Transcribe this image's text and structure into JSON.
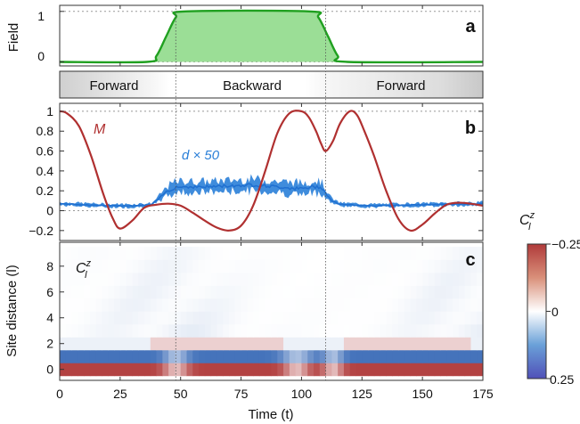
{
  "chart_data": [
    {
      "panel": "a",
      "type": "area",
      "ylabel": "Field",
      "yticks": [
        0,
        1
      ],
      "ylim": [
        -0.08,
        1.12
      ],
      "xlim": [
        0,
        175
      ],
      "x": [
        0,
        36,
        40,
        44,
        48,
        52,
        103,
        107,
        111,
        115,
        119,
        175
      ],
      "y": [
        0,
        0,
        0.12,
        0.5,
        0.88,
        1,
        1,
        0.88,
        0.5,
        0.12,
        0,
        0
      ],
      "color": "#20a020",
      "fill": "#9bde96"
    },
    {
      "panel": "strip",
      "type": "table",
      "labels": [
        "Forward",
        "Backward",
        "Forward"
      ],
      "boundaries": [
        0,
        48,
        110,
        175
      ]
    },
    {
      "panel": "b",
      "type": "line",
      "ylim": [
        -0.3,
        1.08
      ],
      "xlim": [
        0,
        175
      ],
      "yticks": [
        -0.2,
        0,
        0.2,
        0.4,
        0.6,
        0.8,
        1
      ],
      "ytick_labels": [
        "−0.2",
        "0",
        "0.2",
        "0.4",
        "0.6",
        "0.8",
        "1"
      ],
      "series": [
        {
          "name": "M",
          "color": "#b03030",
          "x": [
            0,
            3,
            8,
            13,
            18,
            22,
            25,
            30,
            35,
            40,
            45,
            50,
            55,
            60,
            65,
            70,
            75,
            80,
            85,
            90,
            95,
            100,
            103,
            106,
            108,
            110,
            113,
            116,
            120,
            123,
            126,
            130,
            135,
            140,
            145,
            150,
            155,
            160,
            165,
            170,
            175
          ],
          "y": [
            1,
            0.98,
            0.85,
            0.55,
            0.17,
            -0.08,
            -0.18,
            -0.1,
            0.03,
            0.06,
            0.07,
            0.05,
            -0.02,
            -0.1,
            -0.17,
            -0.2,
            -0.15,
            0.05,
            0.4,
            0.78,
            0.98,
            1.0,
            0.94,
            0.8,
            0.68,
            0.6,
            0.7,
            0.88,
            1.0,
            0.96,
            0.8,
            0.55,
            0.2,
            -0.08,
            -0.2,
            -0.14,
            -0.03,
            0.06,
            0.08,
            0.07,
            0.05
          ]
        },
        {
          "name": "d × 50",
          "color": "#2a7fd8",
          "x": [
            0,
            10,
            20,
            30,
            38,
            41,
            44,
            46,
            48,
            50,
            60,
            70,
            80,
            90,
            100,
            105,
            108,
            110,
            112,
            115,
            118,
            130,
            150,
            175
          ],
          "y": [
            0.07,
            0.06,
            0.05,
            0.05,
            0.06,
            0.12,
            0.19,
            0.21,
            0.24,
            0.24,
            0.24,
            0.25,
            0.26,
            0.24,
            0.22,
            0.24,
            0.24,
            0.18,
            0.11,
            0.07,
            0.06,
            0.05,
            0.06,
            0.07
          ],
          "band": [
            0.03,
            0.03,
            0.03,
            0.03,
            0.03,
            0.05,
            0.08,
            0.1,
            0.1,
            0.1,
            0.1,
            0.1,
            0.11,
            0.1,
            0.11,
            0.12,
            0.1,
            0.08,
            0.05,
            0.03,
            0.03,
            0.03,
            0.03,
            0.03
          ]
        }
      ]
    },
    {
      "panel": "c",
      "type": "heatmap",
      "xlabel": "Time (t)",
      "ylabel": "Site distance (l)",
      "xlim": [
        0,
        175
      ],
      "xticks": [
        0,
        25,
        50,
        75,
        100,
        125,
        150,
        175
      ],
      "yticks": [
        0,
        2,
        4,
        6,
        8
      ],
      "rows": [
        0,
        1,
        2,
        3,
        4,
        5,
        6,
        7,
        8,
        9
      ],
      "colorbar": {
        "label": "C_l^z",
        "min": -0.25,
        "mid": 0,
        "max": 0.25,
        "tick_labels": [
          "−0.25",
          "0",
          "0.25"
        ]
      }
    }
  ],
  "labels": {
    "panel_a": "a",
    "panel_b": "b",
    "panel_c": "c",
    "field": "Field",
    "forward_left": "Forward",
    "backward": "Backward",
    "forward_right": "Forward",
    "m_label": "M",
    "d_label": "d × 50",
    "site_distance": "Site distance (l)",
    "time_axis": "Time (t)",
    "corr_label": "C",
    "corr_sup": "z",
    "corr_sub": "l",
    "cb_top": "−0.25",
    "cb_mid": "0",
    "cb_bot": "0.25",
    "y_one": "1",
    "y_zero": "0"
  }
}
